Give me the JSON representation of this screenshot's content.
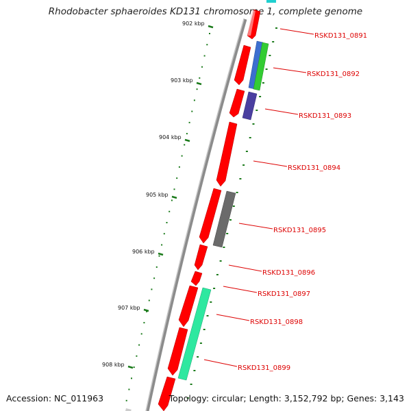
{
  "title": "Rhodobacter sphaeroides KD131 chromosome 1, complete genome",
  "footer": {
    "accession": "Accession: NC_011963",
    "topology": "Topology: circular; Length: 3,152,792 bp; Genes: 3,143"
  },
  "ticks": [
    "902 kbp",
    "903 kbp",
    "904 kbp",
    "905 kbp",
    "906 kbp",
    "907 kbp",
    "908 kbp"
  ],
  "genes": [
    {
      "name": "RSKD131_0891",
      "color": "#ff0000"
    },
    {
      "name": "RSKD131_0892",
      "color": "#ff0000"
    },
    {
      "name": "RSKD131_0893",
      "color": "#ff0000"
    },
    {
      "name": "RSKD131_0894",
      "color": "#ff0000"
    },
    {
      "name": "RSKD131_0895",
      "color": "#ff0000"
    },
    {
      "name": "RSKD131_0896",
      "color": "#ff0000"
    },
    {
      "name": "RSKD131_0897",
      "color": "#ff0000"
    },
    {
      "name": "RSKD131_0898",
      "color": "#ff0000"
    },
    {
      "name": "RSKD131_0899",
      "color": "#ff0000"
    }
  ],
  "colors": {
    "backbone": "#8c8c8c",
    "tick": "#1a7a1a",
    "gene_label": "#dd0000",
    "track_blue": "#3c6fd0",
    "track_green": "#33cc33",
    "track_purple": "#4a3fa0",
    "track_gray": "#6b6b6b",
    "track_teal": "#2ee8a0",
    "track_cyan": "#20d0d0"
  }
}
